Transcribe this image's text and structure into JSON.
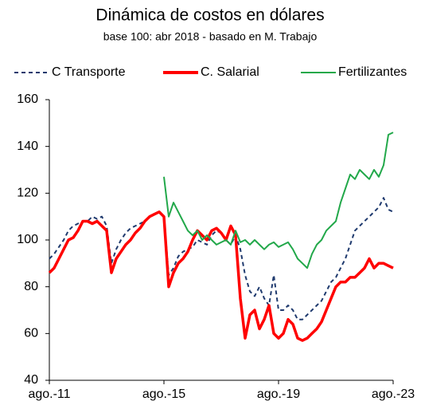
{
  "chart_data": {
    "type": "line",
    "title": "Dinámica de costos en dólares",
    "subtitle": "base 100: abr 2018 - basado en M. Trabajo",
    "legend": "top",
    "categories": [
      "ago.-11",
      null,
      null,
      null,
      null,
      null,
      null,
      null,
      null,
      null,
      null,
      null,
      null,
      null,
      null,
      null,
      null,
      null,
      null,
      null,
      null,
      null,
      null,
      null,
      "ago.-15",
      null,
      null,
      null,
      null,
      null,
      null,
      null,
      null,
      null,
      null,
      null,
      null,
      null,
      null,
      null,
      null,
      null,
      null,
      null,
      null,
      null,
      null,
      null,
      "ago.-19",
      null,
      null,
      null,
      null,
      null,
      null,
      null,
      null,
      null,
      null,
      null,
      null,
      null,
      null,
      null,
      null,
      null,
      null,
      null,
      null,
      null,
      null,
      null,
      "ago.-23"
    ],
    "ylim": [
      40,
      160
    ],
    "yticks": [
      40,
      60,
      80,
      100,
      120,
      140,
      160
    ],
    "series": [
      {
        "name": "C Transporte",
        "color": "#1f3a6e",
        "line_style": "dashed",
        "values": [
          92,
          94,
          97,
          100,
          104,
          106,
          107,
          108,
          108,
          110,
          109,
          110,
          106,
          90,
          96,
          100,
          103,
          105,
          106,
          107,
          108,
          110,
          111,
          112,
          110,
          85,
          88,
          93,
          95,
          96,
          97,
          100,
          99,
          98,
          102,
          104,
          103,
          100,
          98,
          102,
          96,
          85,
          78,
          76,
          80,
          75,
          72,
          85,
          70,
          70,
          72,
          70,
          66,
          66,
          68,
          70,
          72,
          74,
          78,
          82,
          84,
          88,
          92,
          98,
          104,
          106,
          108,
          110,
          112,
          114,
          118,
          113,
          112
        ]
      },
      {
        "name": "C. Salarial",
        "color": "#ff0000",
        "line_style": "solid",
        "values": [
          86,
          88,
          92,
          96,
          100,
          101,
          104,
          108,
          108,
          107,
          108,
          106,
          104,
          86,
          92,
          95,
          98,
          100,
          103,
          105,
          108,
          110,
          111,
          112,
          110,
          80,
          86,
          90,
          92,
          95,
          100,
          104,
          102,
          100,
          104,
          105,
          103,
          100,
          106,
          102,
          75,
          58,
          68,
          70,
          62,
          66,
          72,
          60,
          58,
          60,
          66,
          64,
          58,
          57,
          58,
          60,
          62,
          65,
          70,
          75,
          80,
          82,
          82,
          84,
          84,
          86,
          88,
          92,
          88,
          90,
          90,
          89,
          88
        ]
      },
      {
        "name": "Fertilizantes",
        "color": "#22a84a",
        "line_style": "solid",
        "values": [
          null,
          null,
          null,
          null,
          null,
          null,
          null,
          null,
          null,
          null,
          null,
          null,
          null,
          null,
          null,
          null,
          null,
          null,
          null,
          null,
          null,
          null,
          null,
          null,
          127,
          110,
          116,
          112,
          108,
          104,
          102,
          104,
          100,
          102,
          100,
          98,
          99,
          100,
          98,
          104,
          99,
          100,
          98,
          100,
          98,
          96,
          98,
          99,
          97,
          98,
          99,
          96,
          92,
          90,
          88,
          94,
          98,
          100,
          104,
          106,
          108,
          116,
          122,
          128,
          126,
          130,
          128,
          126,
          130,
          127,
          132,
          145,
          146
        ]
      }
    ]
  }
}
